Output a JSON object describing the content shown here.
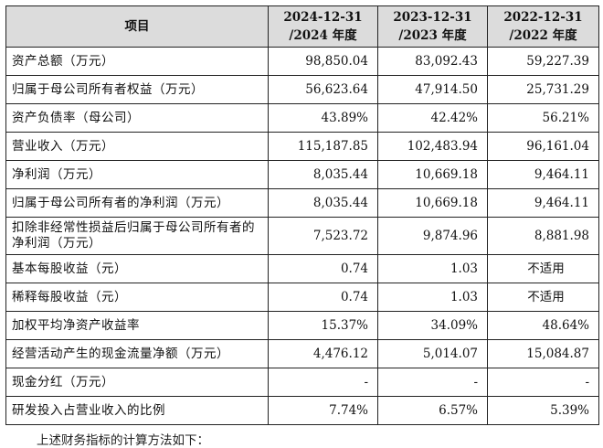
{
  "table": {
    "headers": [
      "项目",
      "2024-12-31\n/2024 年度",
      "2023-12-31\n/2023 年度",
      "2022-12-31\n/2022 年度"
    ],
    "header_lines": [
      [
        "项目"
      ],
      [
        "2024-12-31",
        "/2024 年度"
      ],
      [
        "2023-12-31",
        "/2023 年度"
      ],
      [
        "2022-12-31",
        "/2022 年度"
      ]
    ],
    "rows": [
      {
        "label": "资产总额（万元）",
        "v2024": "98,850.04",
        "v2023": "83,092.43",
        "v2022": "59,227.39"
      },
      {
        "label": "归属于母公司所有者权益（万元）",
        "v2024": "56,623.64",
        "v2023": "47,914.50",
        "v2022": "25,731.29"
      },
      {
        "label": "资产负债率（母公司）",
        "v2024": "43.89%",
        "v2023": "42.42%",
        "v2022": "56.21%"
      },
      {
        "label": "营业收入（万元）",
        "v2024": "115,187.85",
        "v2023": "102,483.94",
        "v2022": "96,161.04"
      },
      {
        "label": "净利润（万元）",
        "v2024": "8,035.44",
        "v2023": "10,669.18",
        "v2022": "9,464.11"
      },
      {
        "label": "归属于母公司所有者的净利润（万元）",
        "v2024": "8,035.44",
        "v2023": "10,669.18",
        "v2022": "9,464.11"
      },
      {
        "label": "扣除非经常性损益后归属于母公司所有者的净利润（万元）",
        "v2024": "7,523.72",
        "v2023": "9,874.96",
        "v2022": "8,881.98"
      },
      {
        "label": "基本每股收益（元）",
        "v2024": "0.74",
        "v2023": "1.03",
        "v2022": "不适用"
      },
      {
        "label": "稀释每股收益（元）",
        "v2024": "0.74",
        "v2023": "1.03",
        "v2022": "不适用"
      },
      {
        "label": "加权平均净资产收益率",
        "v2024": "15.37%",
        "v2023": "34.09%",
        "v2022": "48.64%"
      },
      {
        "label": "经营活动产生的现金流量净额（万元）",
        "v2024": "4,476.12",
        "v2023": "5,014.07",
        "v2022": "15,084.87"
      },
      {
        "label": "现金分红（万元）",
        "v2024": "-",
        "v2023": "-",
        "v2022": "-"
      },
      {
        "label": "研发投入占营业收入的比例",
        "v2024": "7.74%",
        "v2023": "6.57%",
        "v2022": "5.39%"
      }
    ]
  },
  "footnote": "上述财务指标的计算方法如下："
}
